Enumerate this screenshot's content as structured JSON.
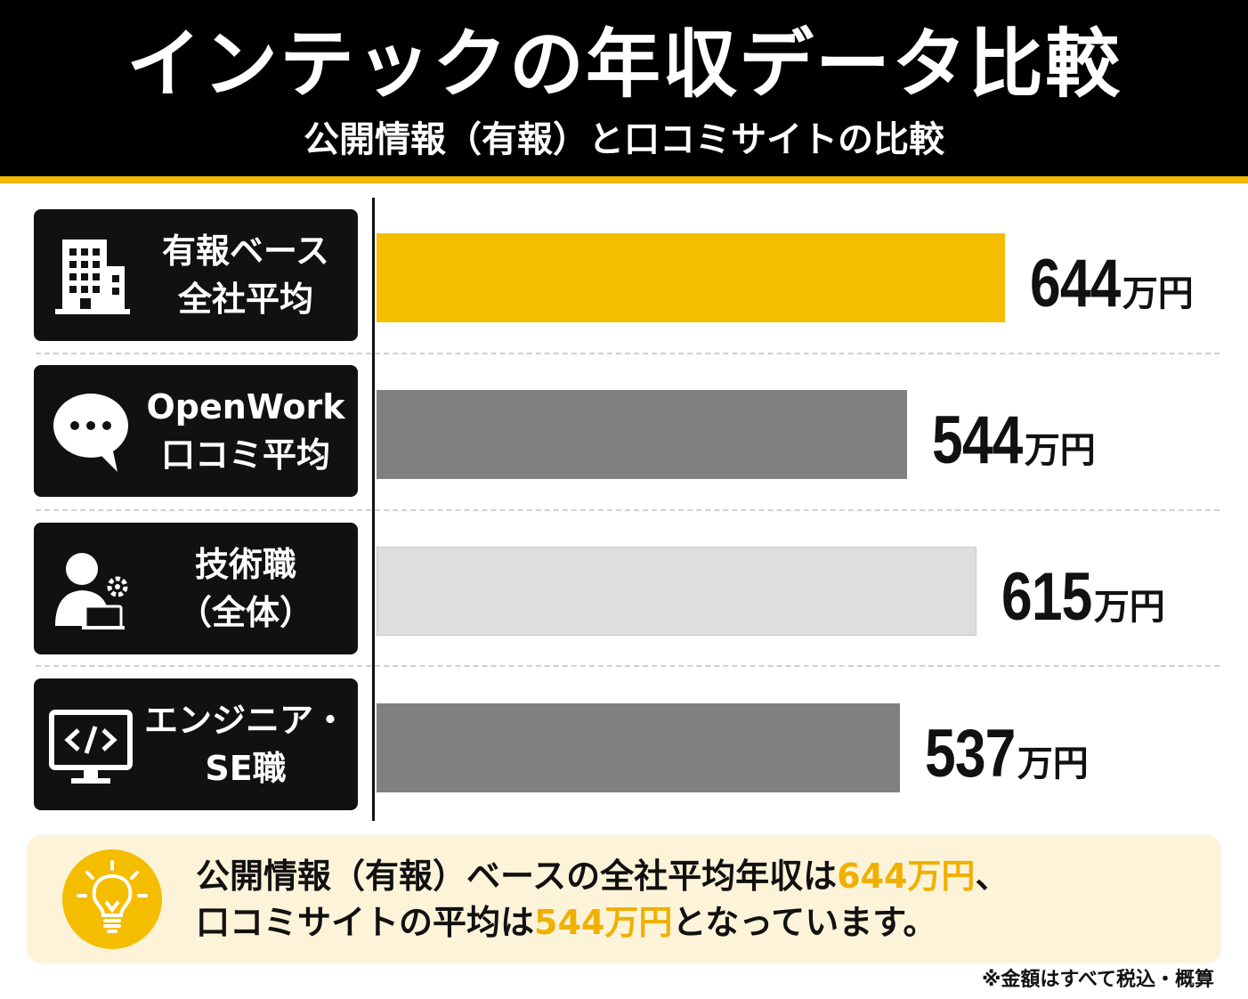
{
  "title": "インテックの年収データ比較",
  "subtitle": "公開情報（有報）と口コミサイトの比較",
  "chart_data": {
    "type": "bar",
    "orientation": "horizontal",
    "unit": "万円",
    "categories": [
      [
        "有報ベース",
        "全社平均"
      ],
      [
        "OpenWork",
        "口コミ平均"
      ],
      [
        "技術職",
        "（全体）"
      ],
      [
        "エンジニア・",
        "SE職"
      ]
    ],
    "values": [
      644,
      544,
      615,
      537
    ],
    "value_labels": [
      "644",
      "544",
      "615",
      "537"
    ],
    "bar_colors": [
      "#f5bd00",
      "#808080",
      "#dedede",
      "#808080"
    ],
    "icons": [
      "building-icon",
      "chat-bubble-icon",
      "person-gear-icon",
      "code-monitor-icon"
    ],
    "xlim": [
      0,
      730
    ]
  },
  "summary": {
    "line1_prefix": "公開情報（有報）ベースの全社平均年収は",
    "line1_highlight": "644万円",
    "line1_suffix": "、",
    "line2_prefix": "口コミサイトの平均は",
    "line2_highlight": "544万円",
    "line2_suffix": "となっています。",
    "icon": "lightbulb-icon",
    "highlight_color": "#f0b000"
  },
  "footnote": "※金額はすべて税込・概算",
  "colors": {
    "header_bg": "#000000",
    "accent": "#f5b800",
    "note_bg": "#fdf3d9"
  }
}
